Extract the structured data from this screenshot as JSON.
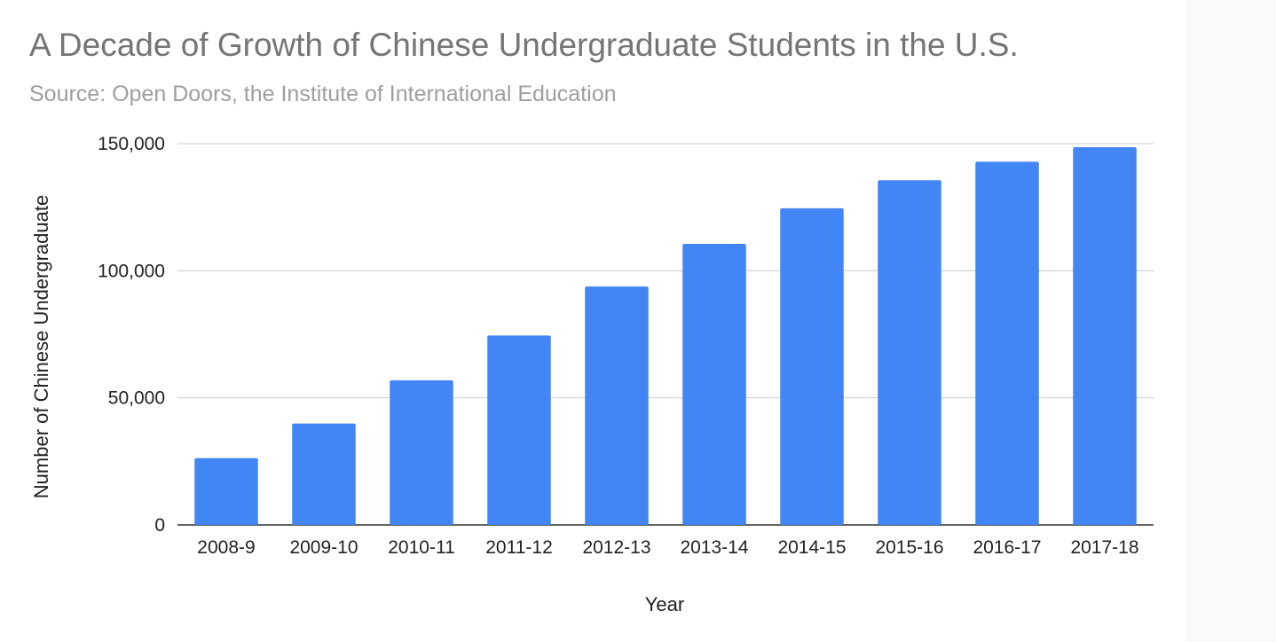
{
  "chart_data": {
    "type": "bar",
    "title": "A Decade of Growth of Chinese Undergraduate Students in the U.S.",
    "subtitle": "Source: Open Doors, the Institute of International Education",
    "xlabel": "Year",
    "ylabel": "Number of Chinese Undergraduate",
    "categories": [
      "2008-9",
      "2009-10",
      "2010-11",
      "2011-12",
      "2012-13",
      "2013-14",
      "2014-15",
      "2015-16",
      "2016-17",
      "2017-18"
    ],
    "values": [
      26300,
      39900,
      56900,
      74500,
      93800,
      110600,
      124600,
      135600,
      142900,
      148600
    ],
    "ylim": [
      0,
      150000
    ],
    "yticks": [
      0,
      50000,
      100000,
      150000
    ],
    "ytick_labels": [
      "0",
      "50,000",
      "100,000",
      "150,000"
    ],
    "grid": true,
    "legend": "none",
    "colors": {
      "bar": "#4285f4",
      "grid": "#cccccc",
      "axis": "#333333",
      "title": "#757575",
      "subtitle": "#9e9e9e"
    }
  }
}
